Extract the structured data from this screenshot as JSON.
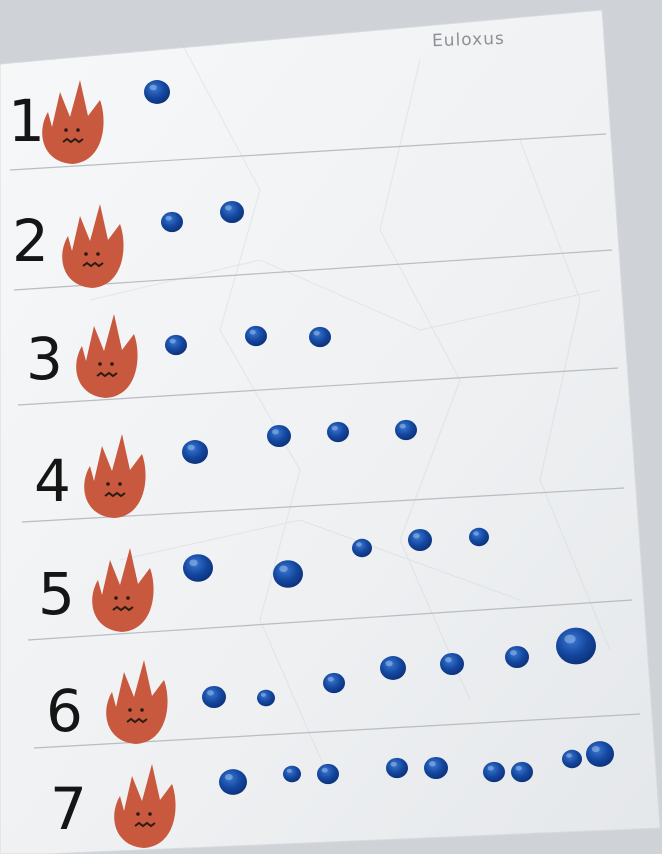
{
  "author_name": "Euloxus",
  "rows": [
    {
      "numeral": "1",
      "dot_count": 1
    },
    {
      "numeral": "2",
      "dot_count": 2
    },
    {
      "numeral": "3",
      "dot_count": 3
    },
    {
      "numeral": "4",
      "dot_count": 4
    },
    {
      "numeral": "5",
      "dot_count": 5
    },
    {
      "numeral": "6",
      "dot_count": 6
    },
    {
      "numeral": "7",
      "dot_count": 7
    }
  ],
  "colors": {
    "background": "#cfd3d7",
    "paper": "#f4f5f6",
    "ruled_line": "#b9bcc0",
    "flame": "#c8583e",
    "flame_face": "#2a1a14",
    "dot_paint": "#1447a0",
    "numeral_ink": "#151515"
  },
  "icons": {
    "flame": "flame-face-icon",
    "dot": "blue-paint-dot"
  }
}
